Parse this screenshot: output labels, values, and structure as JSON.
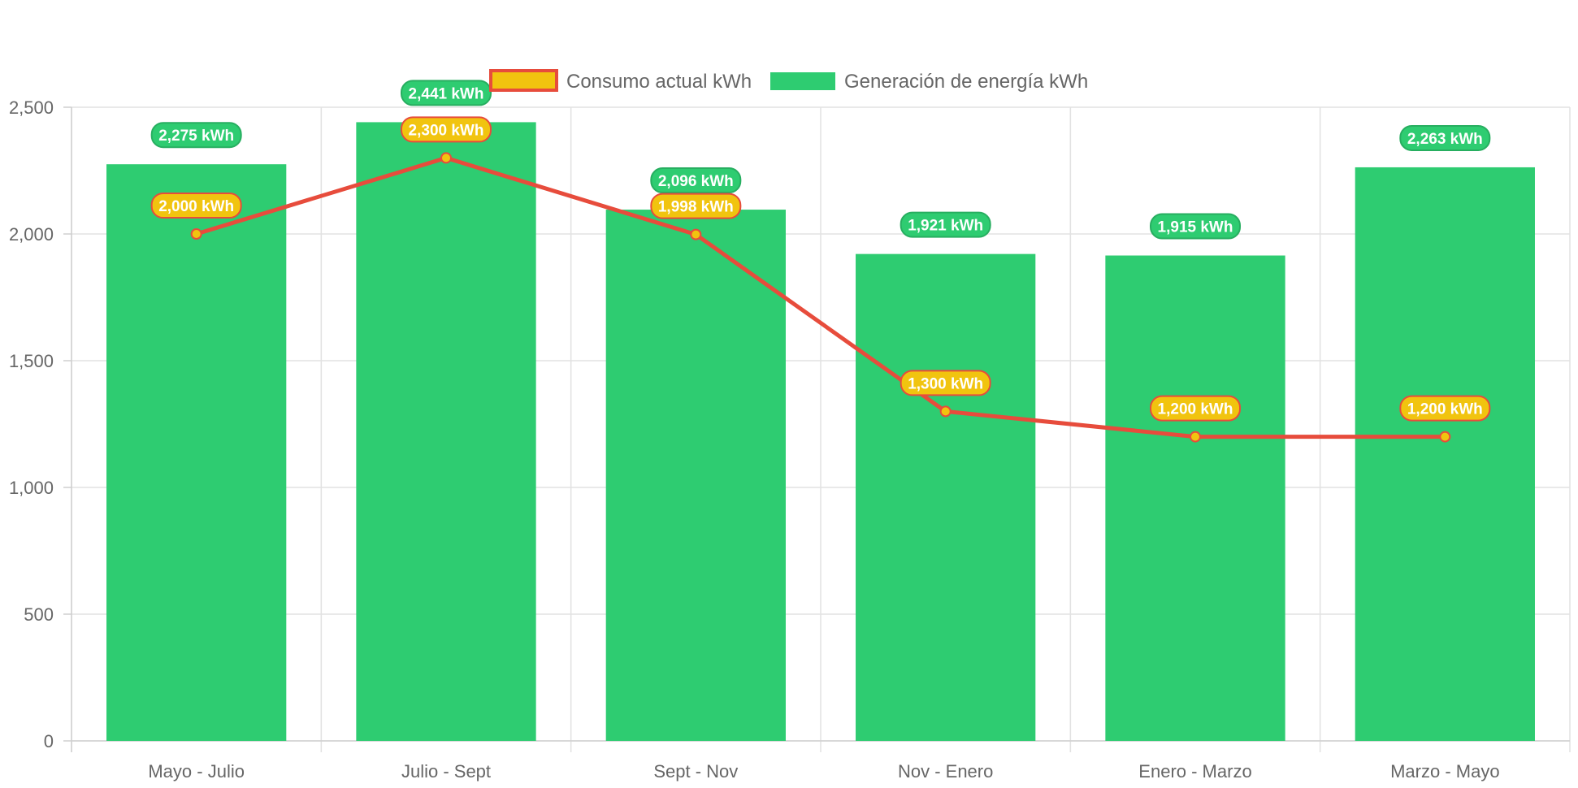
{
  "chart_data": {
    "type": "bar",
    "categories": [
      "Mayo - Julio",
      "Julio - Sept",
      "Sept - Nov",
      "Nov - Enero",
      "Enero - Marzo",
      "Marzo - Mayo"
    ],
    "series": [
      {
        "name": "Consumo actual kWh",
        "type": "line",
        "values": [
          2000,
          2300,
          1998,
          1300,
          1200,
          1200
        ],
        "data_labels": [
          "2,000 kWh",
          "2,300 kWh",
          "1,998 kWh",
          "1,300 kWh",
          "1,200 kWh",
          "1,200 kWh"
        ],
        "line_color": "#e74c3c",
        "fill_color": "#f1c40f"
      },
      {
        "name": "Generación de energía kWh",
        "type": "bar",
        "values": [
          2275,
          2441,
          2096,
          1921,
          1915,
          2263
        ],
        "data_labels": [
          "2,275 kWh",
          "2,441 kWh",
          "2,096 kWh",
          "1,921 kWh",
          "1,915 kWh",
          "2,263 kWh"
        ],
        "color": "#2ecc71",
        "badge_border": "#27ae60"
      }
    ],
    "ylim": [
      0,
      2500
    ],
    "yticks": [
      0,
      500,
      1000,
      1500,
      2000,
      2500
    ],
    "ytick_labels": [
      "0",
      "500",
      "1,000",
      "1,500",
      "2,000",
      "2,500"
    ],
    "title": "",
    "xlabel": "",
    "ylabel": "",
    "grid": true,
    "legend_position": "top-center"
  }
}
